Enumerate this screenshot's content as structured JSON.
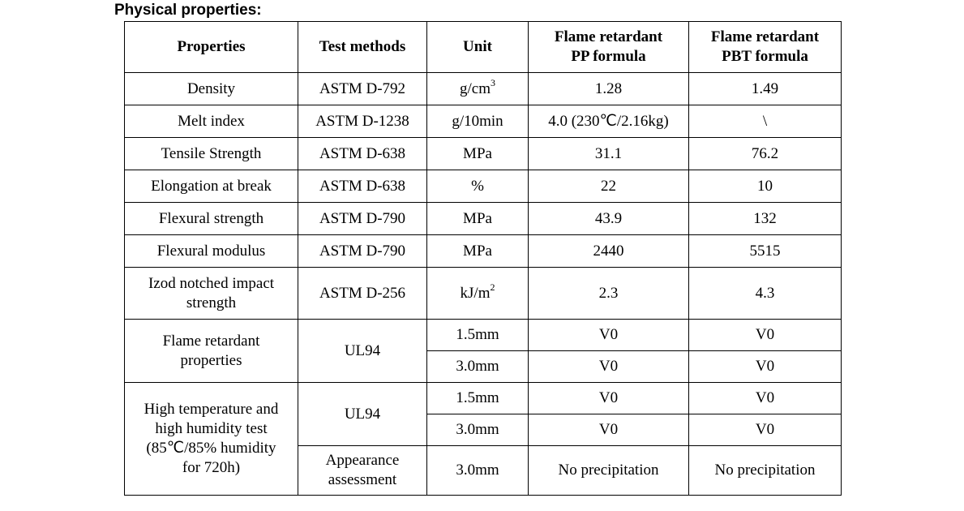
{
  "title": "Physical properties:",
  "headers": {
    "properties": "Properties",
    "test_methods": "Test methods",
    "unit": "Unit",
    "pp_line1": "Flame retardant",
    "pp_line2": "PP formula",
    "pbt_line1": "Flame retardant",
    "pbt_line2": "PBT formula"
  },
  "rows": {
    "density": {
      "property": "Density",
      "method": "ASTM D-792",
      "unit_base": "g/cm",
      "unit_sup": "3",
      "pp": "1.28",
      "pbt": "1.49"
    },
    "melt": {
      "property": "Melt index",
      "method": "ASTM D-1238",
      "unit": "g/10min",
      "pp": "4.0 (230℃/2.16kg)",
      "pbt": "\\"
    },
    "tensile": {
      "property": "Tensile Strength",
      "method": "ASTM D-638",
      "unit": "MPa",
      "pp": "31.1",
      "pbt": "76.2"
    },
    "elongation": {
      "property": "Elongation at break",
      "method": "ASTM D-638",
      "unit": "%",
      "pp": "22",
      "pbt": "10"
    },
    "flex_strength": {
      "property": "Flexural strength",
      "method": "ASTM D-790",
      "unit": "MPa",
      "pp": "43.9",
      "pbt": "132"
    },
    "flex_modulus": {
      "property": "Flexural modulus",
      "method": "ASTM D-790",
      "unit": "MPa",
      "pp": "2440",
      "pbt": "5515"
    },
    "izod": {
      "property_line1": "Izod notched impact",
      "property_line2": "strength",
      "method": "ASTM D-256",
      "unit_base": "kJ/m",
      "unit_sup": "2",
      "pp": "2.3",
      "pbt": "4.3"
    },
    "flame": {
      "property_line1": "Flame retardant",
      "property_line2": "properties",
      "method": "UL94",
      "sub": [
        {
          "unit": "1.5mm",
          "pp": "V0",
          "pbt": "V0"
        },
        {
          "unit": "3.0mm",
          "pp": "V0",
          "pbt": "V0"
        }
      ]
    },
    "humidity": {
      "property_line1": "High temperature and",
      "property_line2": "high humidity test",
      "property_line3": "(85℃/85% humidity",
      "property_line4": "for 720h)",
      "method": "UL94",
      "sub": [
        {
          "unit": "1.5mm",
          "pp": "V0",
          "pbt": "V0"
        },
        {
          "unit": "3.0mm",
          "pp": "V0",
          "pbt": "V0"
        }
      ],
      "appearance": {
        "method_line1": "Appearance",
        "method_line2": "assessment",
        "unit": "3.0mm",
        "pp": "No precipitation",
        "pbt": "No precipitation"
      }
    }
  }
}
